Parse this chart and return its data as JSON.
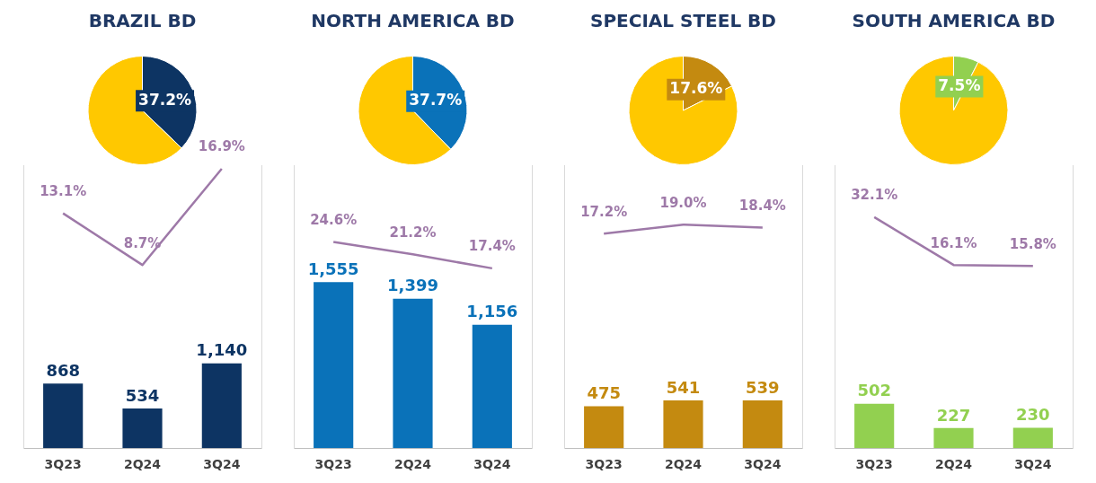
{
  "chart_data": [
    {
      "type": "pie",
      "title": "BRAZIL BD",
      "categories": [
        null,
        null
      ],
      "values": [
        37.2,
        62.8
      ],
      "colors": [
        "#0d3463",
        "#ffc800"
      ],
      "value_labels": [
        "37.2%",
        null
      ],
      "legend": false
    },
    {
      "type": "bar",
      "categories": [
        "3Q23",
        "2Q24",
        "3Q24"
      ],
      "ylim": [
        0,
        3800
      ],
      "y2lim": [
        -6.9,
        17.2
      ],
      "tick_labels": "x",
      "legend": false,
      "series": [
        {
          "type": "bar",
          "color": "#0d3463",
          "values": [
            868,
            534,
            1140
          ],
          "value_labels": [
            "868",
            "534",
            "1,140"
          ]
        },
        {
          "type": "line",
          "axis": "y2",
          "color": "#9e79a8",
          "values": [
            13.1,
            8.7,
            16.9
          ],
          "value_labels": [
            "13.1%",
            "8.7%",
            "16.9%"
          ]
        }
      ]
    },
    {
      "type": "pie",
      "title": "NORTH AMERICA BD",
      "categories": [
        null,
        null
      ],
      "values": [
        37.7,
        62.3
      ],
      "colors": [
        "#0a72b9",
        "#ffc800"
      ],
      "value_labels": [
        "37.7%",
        null
      ],
      "legend": false
    },
    {
      "type": "bar",
      "categories": [
        "3Q23",
        "2Q24",
        "3Q24"
      ],
      "ylim": [
        0,
        2650
      ],
      "y2lim": [
        -31.6,
        45.5
      ],
      "tick_labels": "x",
      "legend": false,
      "series": [
        {
          "type": "bar",
          "color": "#0a72b9",
          "values": [
            1555,
            1399,
            1156
          ],
          "value_labels": [
            "1,555",
            "1,399",
            "1,156"
          ]
        },
        {
          "type": "line",
          "axis": "y2",
          "color": "#9e79a8",
          "values": [
            24.6,
            21.2,
            17.4
          ],
          "value_labels": [
            "24.6%",
            "21.2%",
            "17.4%"
          ]
        }
      ]
    },
    {
      "type": "pie",
      "title": "SPECIAL STEEL BD",
      "categories": [
        null,
        null
      ],
      "values": [
        17.6,
        82.4
      ],
      "colors": [
        "#c48a10",
        "#ffc800"
      ],
      "value_labels": [
        "17.6%",
        null
      ],
      "legend": false
    },
    {
      "type": "bar",
      "categories": [
        "3Q23",
        "2Q24",
        "3Q24"
      ],
      "ylim": [
        0,
        3200
      ],
      "y2lim": [
        -25.4,
        30.8
      ],
      "tick_labels": "x",
      "legend": false,
      "series": [
        {
          "type": "bar",
          "color": "#c48a10",
          "values": [
            475,
            541,
            539
          ],
          "value_labels": [
            "475",
            "541",
            "539"
          ]
        },
        {
          "type": "line",
          "axis": "y2",
          "color": "#9e79a8",
          "values": [
            17.2,
            19.0,
            18.4
          ],
          "value_labels": [
            "17.2%",
            "19.0%",
            "18.4%"
          ]
        }
      ]
    },
    {
      "type": "pie",
      "title": "SOUTH AMERICA BD",
      "categories": [
        null,
        null
      ],
      "values": [
        7.5,
        92.5
      ],
      "colors": [
        "#92d050",
        "#ffc800"
      ],
      "value_labels": [
        "7.5%",
        null
      ],
      "legend": false
    },
    {
      "type": "bar",
      "categories": [
        "3Q23",
        "2Q24",
        "3Q24"
      ],
      "ylim": [
        0,
        3200
      ],
      "y2lim": [
        -45.2,
        49.5
      ],
      "tick_labels": "x",
      "legend": false,
      "series": [
        {
          "type": "bar",
          "color": "#92d050",
          "values": [
            502,
            227,
            230
          ],
          "value_labels": [
            "502",
            "227",
            "230"
          ]
        },
        {
          "type": "line",
          "axis": "y2",
          "color": "#9e79a8",
          "values": [
            32.1,
            16.1,
            15.8
          ],
          "value_labels": [
            "32.1%",
            "16.1%",
            "15.8%"
          ]
        }
      ]
    }
  ]
}
